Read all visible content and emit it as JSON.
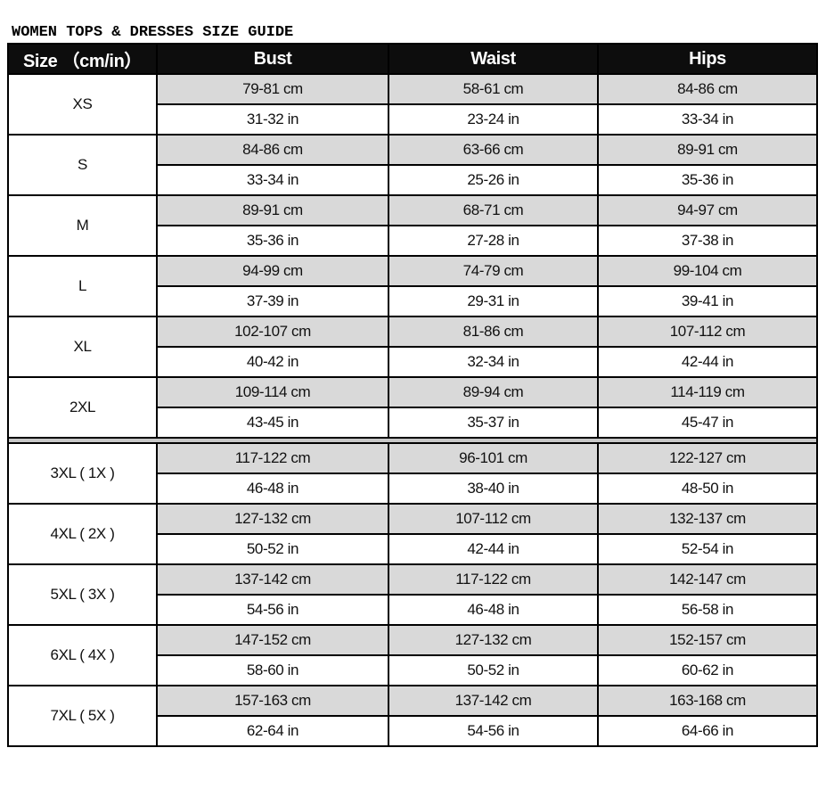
{
  "title": "WOMEN TOPS & DRESSES SIZE GUIDE",
  "headers": [
    "Size （cm/in）",
    "Bust",
    "Waist",
    "Hips"
  ],
  "rows": [
    {
      "size": "XS",
      "cm": [
        "79-81 cm",
        "58-61 cm",
        "84-86 cm"
      ],
      "in": [
        "31-32 in",
        "23-24 in",
        "33-34 in"
      ]
    },
    {
      "size": "S",
      "cm": [
        "84-86 cm",
        "63-66 cm",
        "89-91 cm"
      ],
      "in": [
        "33-34 in",
        "25-26 in",
        "35-36 in"
      ]
    },
    {
      "size": "M",
      "cm": [
        "89-91 cm",
        "68-71 cm",
        "94-97 cm"
      ],
      "in": [
        "35-36 in",
        "27-28 in",
        "37-38 in"
      ]
    },
    {
      "size": "L",
      "cm": [
        "94-99 cm",
        "74-79 cm",
        "99-104 cm"
      ],
      "in": [
        "37-39 in",
        "29-31 in",
        "39-41 in"
      ]
    },
    {
      "size": "XL",
      "cm": [
        "102-107 cm",
        "81-86 cm",
        "107-112 cm"
      ],
      "in": [
        "40-42 in",
        "32-34 in",
        "42-44 in"
      ]
    },
    {
      "size": "2XL",
      "cm": [
        "109-114 cm",
        "89-94 cm",
        "114-119 cm"
      ],
      "in": [
        "43-45 in",
        "35-37 in",
        "45-47 in"
      ]
    },
    {
      "size": "3XL ( 1X )",
      "cm": [
        "117-122 cm",
        "96-101 cm",
        "122-127 cm"
      ],
      "in": [
        "46-48 in",
        "38-40 in",
        "48-50 in"
      ]
    },
    {
      "size": "4XL ( 2X )",
      "cm": [
        "127-132 cm",
        "107-112 cm",
        "132-137 cm"
      ],
      "in": [
        "50-52 in",
        "42-44 in",
        "52-54 in"
      ]
    },
    {
      "size": "5XL ( 3X )",
      "cm": [
        "137-142 cm",
        "117-122 cm",
        "142-147 cm"
      ],
      "in": [
        "54-56 in",
        "46-48 in",
        "56-58 in"
      ]
    },
    {
      "size": "6XL ( 4X )",
      "cm": [
        "147-152 cm",
        "127-132 cm",
        "152-157 cm"
      ],
      "in": [
        "58-60 in",
        "50-52 in",
        "60-62 in"
      ]
    },
    {
      "size": "7XL ( 5X )",
      "cm": [
        "157-163 cm",
        "137-142 cm",
        "163-168 cm"
      ],
      "in": [
        "62-64 in",
        "54-56 in",
        "64-66 in"
      ]
    }
  ]
}
